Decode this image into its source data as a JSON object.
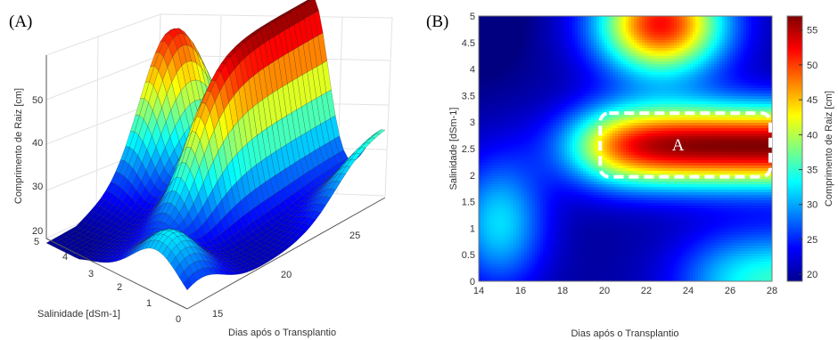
{
  "panels": {
    "left_label": "(A)",
    "right_label": "(B)"
  },
  "chart_data": [
    {
      "type": "surface3d",
      "panel": "(A)",
      "xlabel": "Dias após o Transplantio",
      "ylabel": "Salinidade [dSm-1]",
      "zlabel": "Comprimento de Raiz [cm]",
      "x_ticks": [
        "15",
        "20",
        "25"
      ],
      "y_ticks": [
        "0",
        "1",
        "2",
        "3",
        "4",
        "5"
      ],
      "z_ticks": [
        "20",
        "30",
        "40",
        "50"
      ],
      "xlim": [
        14,
        28
      ],
      "ylim": [
        0,
        5
      ],
      "zlim": [
        18,
        57
      ],
      "colormap": "jet"
    },
    {
      "type": "heatmap",
      "panel": "(B)",
      "xlabel": "Dias após o Transplantio",
      "ylabel": "Salinidade [dSm-1]",
      "colorbar_label": "Comprimento de Raiz [cm]",
      "x_ticks": [
        "14",
        "16",
        "18",
        "20",
        "22",
        "24",
        "26",
        "28"
      ],
      "y_ticks": [
        "0",
        "0.5",
        "1",
        "1.5",
        "2",
        "2.5",
        "3",
        "3.5",
        "4",
        "4.5",
        "5"
      ],
      "colorbar_ticks": [
        "20",
        "25",
        "30",
        "35",
        "40",
        "45",
        "50",
        "55"
      ],
      "xlim": [
        14,
        28
      ],
      "ylim": [
        0,
        5
      ],
      "clim": [
        19,
        57
      ],
      "colormap": "jet",
      "annotation": {
        "label": "A",
        "x_range": [
          19.8,
          28
        ],
        "y_range": [
          1.97,
          3.17
        ],
        "style": "white dashed rounded box"
      }
    }
  ]
}
